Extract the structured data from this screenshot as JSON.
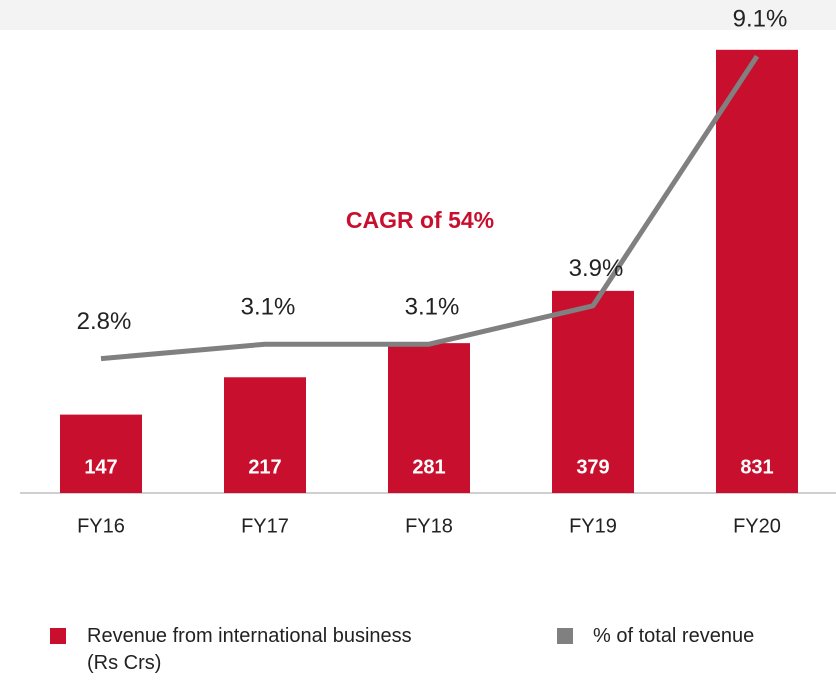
{
  "chart_data": {
    "type": "bar",
    "categories": [
      "FY16",
      "FY17",
      "FY18",
      "FY19",
      "FY20"
    ],
    "series": [
      {
        "name": "Revenue from international business (Rs Crs)",
        "type": "bar",
        "color": "#c8102e",
        "values": [
          147,
          217,
          281,
          379,
          831
        ]
      },
      {
        "name": "% of total revenue",
        "type": "line",
        "axis": "y2",
        "color": "#808080",
        "values": [
          2.8,
          3.1,
          3.1,
          3.9,
          9.1
        ],
        "value_labels": [
          "2.8%",
          "3.1%",
          "3.1%",
          "3.9%",
          "9.1%"
        ]
      }
    ],
    "annotations": [
      "CAGR of 54%"
    ],
    "ylim": [
      0,
      900
    ],
    "y2lim": [
      0,
      10
    ]
  }
}
